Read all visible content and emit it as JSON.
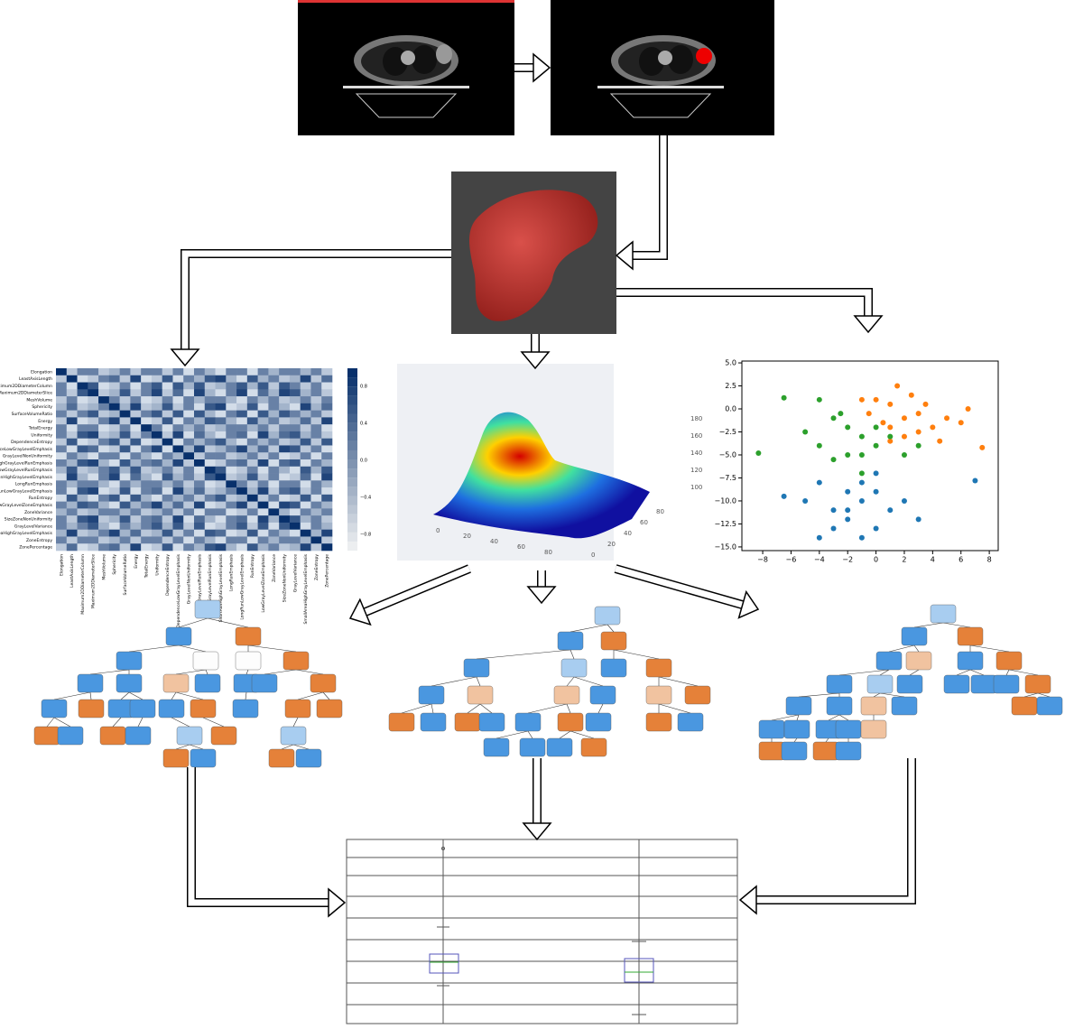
{
  "heatmap": {
    "features": [
      "Elongation",
      "LeastAxisLength",
      "Maximum2DDiameterColumn",
      "Maximum2DDiameterSlice",
      "MeshVolume",
      "Sphericity",
      "SurfaceVolumeRatio",
      "Energy",
      "TotalEnergy",
      "Uniformity",
      "DependenceEntropy",
      "SmallDependenceLowGrayLevelEmphasis",
      "GrayLevelNonUniformity",
      "HighGrayLevelRunEmphasis",
      "LowGrayLevelRunEmphasis",
      "ShortRunHighGrayLevelEmphasis",
      "LongRunEmphasis",
      "LongRunLowGrayLevelEmphasis",
      "RunEntropy",
      "LowGrayLevelZoneEmphasis",
      "ZoneVariance",
      "SizeZoneNonUniformity",
      "GrayLevelVariance",
      "SmallAreaHighGrayLevelEmphasis",
      "ZoneEntropy",
      "ZonePercentage"
    ],
    "colorbar_ticks": [
      "0.8",
      "0.4",
      "0.0",
      "−0.4",
      "−0.8"
    ]
  },
  "surface": {
    "z_ticks": [
      "180",
      "160",
      "140",
      "120",
      "100"
    ],
    "x_ticks": [
      "0",
      "20",
      "40",
      "60",
      "80"
    ],
    "y_ticks": [
      "0",
      "20",
      "40",
      "60",
      "80"
    ]
  },
  "chart_data": {
    "type": "scatter",
    "xlim": [
      -9.47,
      8.63
    ],
    "ylim": [
      -15.4,
      5.2
    ],
    "xticks": [
      {
        "value": -8,
        "label": "−8"
      },
      {
        "value": -6,
        "label": "−6"
      },
      {
        "value": -4,
        "label": "−4"
      },
      {
        "value": -2,
        "label": "−2"
      },
      0,
      2,
      4,
      6,
      8
    ],
    "yticks": [
      {
        "value": 5,
        "label": "5.0"
      },
      {
        "value": 2.5,
        "label": "2.5"
      },
      {
        "value": 0,
        "label": "0.0"
      },
      {
        "value": -2.5,
        "label": "−2.5"
      },
      {
        "value": -5,
        "label": "−5.0"
      },
      {
        "value": -7.5,
        "label": "−7.5"
      },
      {
        "value": -10,
        "label": "−10.0"
      },
      {
        "value": -12.5,
        "label": "−12.5"
      },
      {
        "value": -15,
        "label": "−15.0"
      }
    ],
    "series": [
      {
        "color": "#ff7f0e",
        "x": [
          0,
          1,
          2,
          3,
          1,
          2.5,
          4,
          0.5,
          3.5,
          5,
          2,
          -0.5,
          1.5,
          6,
          7.5,
          4.5,
          -1,
          3,
          1,
          6.5
        ],
        "values": [
          1,
          0.5,
          -1,
          -0.5,
          -2,
          1.5,
          -2,
          -1.5,
          0.5,
          -1,
          -3,
          -0.5,
          2.5,
          -1.5,
          -4.2,
          -3.5,
          1,
          -2.5,
          -3.5,
          0
        ]
      },
      {
        "color": "#2ca02c",
        "x": [
          -2,
          -1,
          0,
          -3,
          -4,
          -1,
          1,
          -2,
          -5,
          -6.5,
          -8.3,
          0,
          -3,
          2,
          -2.5,
          -4,
          3,
          -1
        ],
        "values": [
          -2,
          -3,
          -4,
          -1,
          -4,
          -5,
          -3,
          -5,
          -2.5,
          1.2,
          -4.8,
          -2,
          -5.5,
          -5,
          -0.5,
          1,
          -4,
          -7
        ]
      },
      {
        "color": "#1f77b4",
        "x": [
          -2,
          -1,
          -3,
          0,
          -2,
          -4,
          -1,
          1,
          -3,
          0,
          2,
          -5,
          -6.5,
          -4,
          -1,
          3,
          7,
          -2,
          0
        ],
        "values": [
          -9,
          -10,
          -11,
          -9,
          -12,
          -8,
          -8,
          -11,
          -13,
          -13,
          -10,
          -10,
          -9.5,
          -14,
          -14,
          -12,
          -7.8,
          -11,
          -7
        ]
      }
    ]
  }
}
